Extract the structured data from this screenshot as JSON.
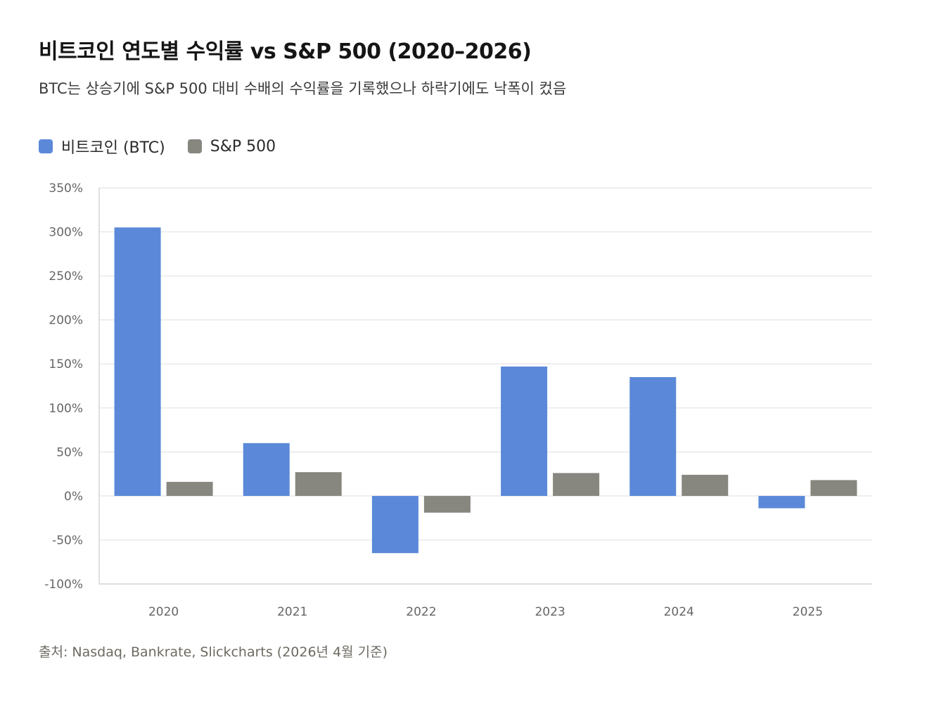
{
  "title": "비트코인 연도별 수익률 vs S&P 500 (2020–2026)",
  "subtitle": "BTC는 상승기에 S&P 500 대비 수배의 수익률을 기록했으나 하락기에도 낙폭이 컸음",
  "source": "출처: Nasdaq, Bankrate, Slickcharts (2026년 4월 기준)",
  "chart_data": {
    "type": "bar",
    "categories": [
      "2020",
      "2021",
      "2022",
      "2023",
      "2024",
      "2025"
    ],
    "series": [
      {
        "name": "비트코인 (BTC)",
        "color": "#5b88d8",
        "values": [
          305,
          60,
          -65,
          147,
          135,
          -14
        ]
      },
      {
        "name": "S&P 500",
        "color": "#878780",
        "values": [
          16,
          27,
          -19,
          26,
          24,
          18
        ]
      }
    ],
    "ylim": [
      -100,
      350
    ],
    "yticks": [
      -100,
      -50,
      0,
      50,
      100,
      150,
      200,
      250,
      300,
      350
    ],
    "ytick_labels": [
      "-100%",
      "-50%",
      "0%",
      "50%",
      "100%",
      "150%",
      "200%",
      "250%",
      "300%",
      "350%"
    ],
    "grid": true,
    "legend_position": "top-left"
  }
}
